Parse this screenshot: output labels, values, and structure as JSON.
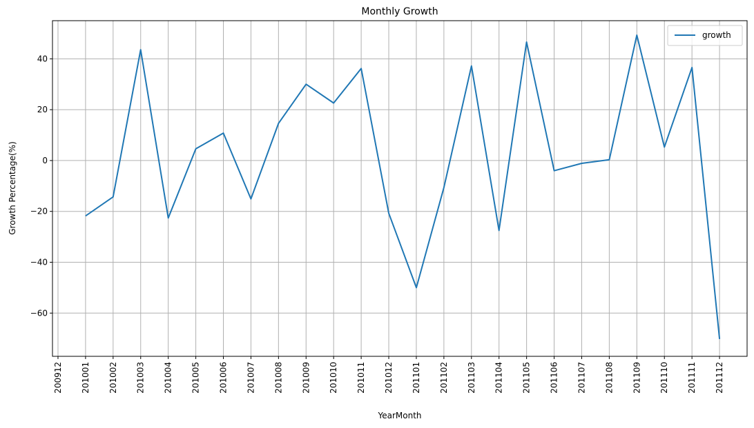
{
  "chart_data": {
    "type": "line",
    "title": "Monthly Growth",
    "xlabel": "YearMonth",
    "ylabel": "Growth Percentage(%)",
    "categories": [
      "200912",
      "201001",
      "201002",
      "201003",
      "201004",
      "201005",
      "201006",
      "201007",
      "201008",
      "201009",
      "201010",
      "201011",
      "201012",
      "201101",
      "201102",
      "201103",
      "201104",
      "201105",
      "201106",
      "201107",
      "201108",
      "201109",
      "201110",
      "201111",
      "201112"
    ],
    "series": [
      {
        "name": "growth",
        "color": "#1f77b4",
        "values": [
          null,
          -21.8,
          -14.3,
          43.6,
          -22.6,
          4.6,
          10.8,
          -15.1,
          14.6,
          30.0,
          22.6,
          36.2,
          -20.7,
          -50.0,
          -10.6,
          37.2,
          -27.5,
          46.6,
          -4.0,
          -1.1,
          0.3,
          49.3,
          5.3,
          36.6,
          -70.2
        ]
      }
    ],
    "yticks": [
      -60,
      -40,
      -20,
      0,
      20,
      40
    ],
    "ytick_labels": [
      "−60",
      "−40",
      "−20",
      "0",
      "20",
      "40"
    ],
    "xlim": [
      -0.2,
      25.0
    ],
    "ylim": [
      -77,
      55
    ],
    "grid": true,
    "legend": "upper right"
  }
}
